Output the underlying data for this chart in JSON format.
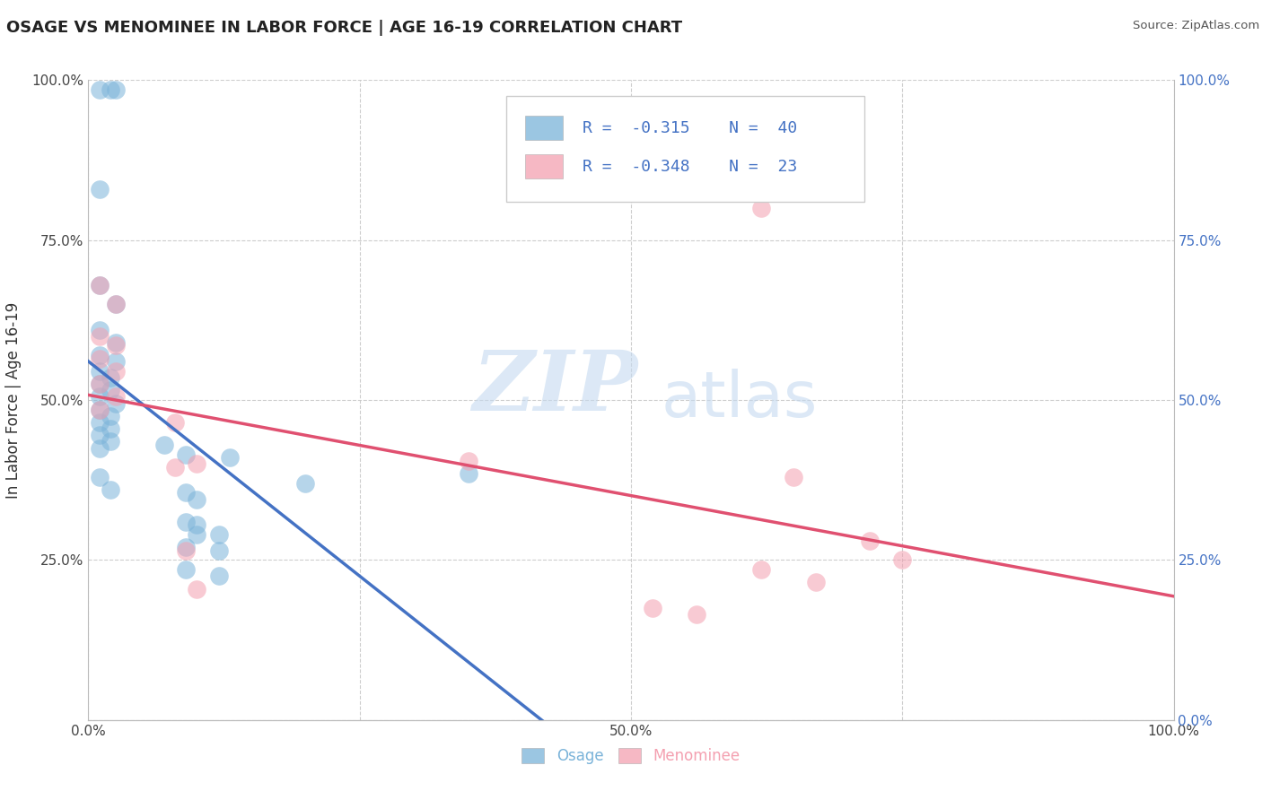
{
  "title": "OSAGE VS MENOMINEE IN LABOR FORCE | AGE 16-19 CORRELATION CHART",
  "source": "Source: ZipAtlas.com",
  "ylabel": "In Labor Force | Age 16-19",
  "xlim": [
    0.0,
    1.0
  ],
  "ylim": [
    0.0,
    1.0
  ],
  "osage_R": -0.315,
  "osage_N": 40,
  "menominee_R": -0.348,
  "menominee_N": 23,
  "osage_color": "#7ab3d9",
  "menominee_color": "#f4a0b0",
  "osage_scatter": [
    [
      0.01,
      0.985
    ],
    [
      0.02,
      0.985
    ],
    [
      0.025,
      0.985
    ],
    [
      0.01,
      0.83
    ],
    [
      0.01,
      0.68
    ],
    [
      0.025,
      0.65
    ],
    [
      0.01,
      0.61
    ],
    [
      0.025,
      0.59
    ],
    [
      0.01,
      0.57
    ],
    [
      0.025,
      0.56
    ],
    [
      0.01,
      0.545
    ],
    [
      0.02,
      0.535
    ],
    [
      0.01,
      0.525
    ],
    [
      0.02,
      0.515
    ],
    [
      0.01,
      0.505
    ],
    [
      0.025,
      0.495
    ],
    [
      0.01,
      0.485
    ],
    [
      0.02,
      0.475
    ],
    [
      0.01,
      0.465
    ],
    [
      0.02,
      0.455
    ],
    [
      0.01,
      0.445
    ],
    [
      0.02,
      0.435
    ],
    [
      0.01,
      0.425
    ],
    [
      0.01,
      0.38
    ],
    [
      0.02,
      0.36
    ],
    [
      0.07,
      0.43
    ],
    [
      0.09,
      0.415
    ],
    [
      0.09,
      0.355
    ],
    [
      0.1,
      0.345
    ],
    [
      0.13,
      0.41
    ],
    [
      0.2,
      0.37
    ],
    [
      0.35,
      0.385
    ],
    [
      0.09,
      0.31
    ],
    [
      0.1,
      0.305
    ],
    [
      0.1,
      0.29
    ],
    [
      0.12,
      0.29
    ],
    [
      0.09,
      0.27
    ],
    [
      0.12,
      0.265
    ],
    [
      0.09,
      0.235
    ],
    [
      0.12,
      0.225
    ]
  ],
  "menominee_scatter": [
    [
      0.01,
      0.68
    ],
    [
      0.025,
      0.65
    ],
    [
      0.01,
      0.6
    ],
    [
      0.025,
      0.585
    ],
    [
      0.01,
      0.565
    ],
    [
      0.025,
      0.545
    ],
    [
      0.01,
      0.525
    ],
    [
      0.025,
      0.505
    ],
    [
      0.01,
      0.485
    ],
    [
      0.08,
      0.465
    ],
    [
      0.08,
      0.395
    ],
    [
      0.1,
      0.4
    ],
    [
      0.35,
      0.405
    ],
    [
      0.62,
      0.8
    ],
    [
      0.65,
      0.38
    ],
    [
      0.72,
      0.28
    ],
    [
      0.75,
      0.25
    ],
    [
      0.52,
      0.175
    ],
    [
      0.62,
      0.235
    ],
    [
      0.67,
      0.215
    ],
    [
      0.56,
      0.165
    ],
    [
      0.09,
      0.265
    ],
    [
      0.1,
      0.205
    ]
  ],
  "osage_line_color": "#4472c4",
  "menominee_line_color": "#e05070",
  "watermark_zip": "ZIP",
  "watermark_atlas": "atlas",
  "background_color": "#ffffff",
  "grid_color": "#c8c8c8",
  "title_color": "#222222",
  "legend_text_color": "#4472c4",
  "tick_color": "#444444"
}
